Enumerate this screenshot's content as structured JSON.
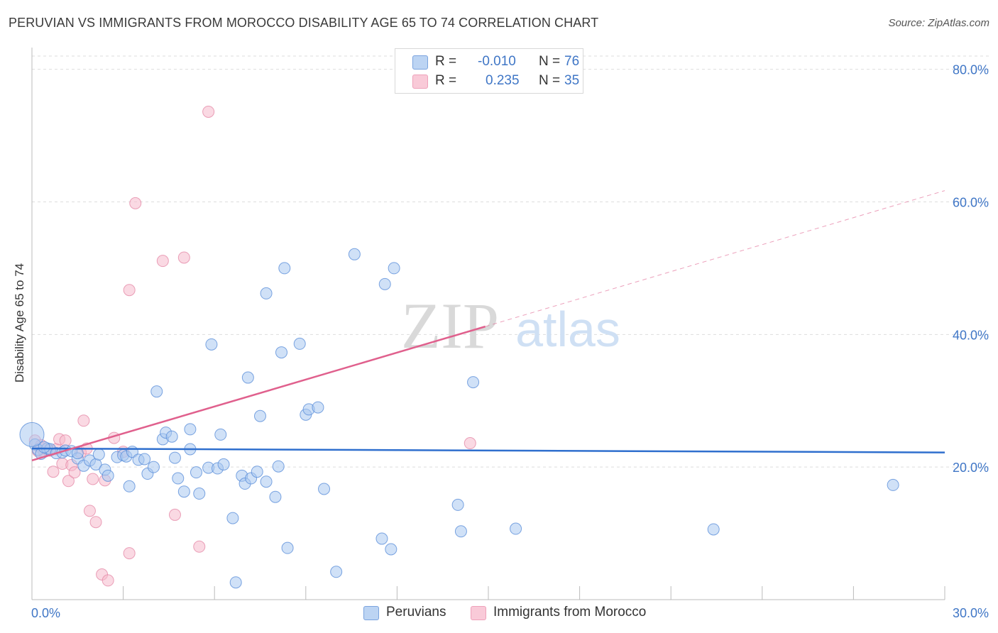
{
  "header": {
    "title": "PERUVIAN VS IMMIGRANTS FROM MOROCCO DISABILITY AGE 65 TO 74 CORRELATION CHART",
    "source": "Source: ZipAtlas.com"
  },
  "legend_stats": [
    {
      "r_label": "R =",
      "r_value": "-0.010",
      "n_label": "N =",
      "n_value": "76"
    },
    {
      "r_label": "R =",
      "r_value": "0.235",
      "n_label": "N =",
      "n_value": "35"
    }
  ],
  "legend_series": [
    {
      "label": "Peruvians"
    },
    {
      "label": "Immigrants from Morocco"
    }
  ],
  "colors": {
    "blue_fill": "#a9c8f0",
    "blue_stroke": "#5b8fd9",
    "blue_line": "#2f6fce",
    "pink_fill": "#f6b9cc",
    "pink_stroke": "#e58aa7",
    "pink_line": "#e0608d",
    "tick_text": "#3f76c6",
    "grid": "#dddddd",
    "watermark": "#d9d9d9"
  },
  "watermark": {
    "zip": "ZIP",
    "atlas": "atlas"
  },
  "chart_data": {
    "type": "scatter",
    "title": "PERUVIAN VS IMMIGRANTS FROM MOROCCO DISABILITY AGE 65 TO 74 CORRELATION CHART",
    "xlabel": "",
    "ylabel": "Disability Age 65 to 74",
    "xlim": [
      0,
      30
    ],
    "ylim": [
      0,
      82
    ],
    "x_tick_labels": [
      "0.0%",
      "30.0%"
    ],
    "y_ticks": [
      20,
      40,
      60,
      80
    ],
    "y_tick_labels": [
      "20.0%",
      "40.0%",
      "60.0%",
      "80.0%"
    ],
    "grid": true,
    "series": [
      {
        "name": "Peruvians",
        "r": -0.01,
        "n": 76,
        "trend": {
          "x0": 0,
          "y0": 22.8,
          "x1": 30,
          "y1": 22.2
        },
        "points": [
          [
            0.1,
            23.4
          ],
          [
            0.2,
            22.6
          ],
          [
            0.3,
            22.0
          ],
          [
            0.5,
            22.8
          ],
          [
            0.6,
            22.7
          ],
          [
            0.8,
            22.1
          ],
          [
            1.0,
            22.2
          ],
          [
            1.1,
            22.5
          ],
          [
            1.3,
            22.4
          ],
          [
            1.5,
            21.3
          ],
          [
            1.7,
            20.2
          ],
          [
            1.9,
            21.0
          ],
          [
            2.1,
            20.4
          ],
          [
            2.2,
            21.9
          ],
          [
            2.4,
            19.6
          ],
          [
            2.5,
            18.7
          ],
          [
            2.8,
            21.5
          ],
          [
            3.0,
            21.8
          ],
          [
            3.1,
            21.6
          ],
          [
            3.2,
            17.1
          ],
          [
            3.3,
            22.3
          ],
          [
            3.5,
            21.1
          ],
          [
            3.7,
            21.2
          ],
          [
            3.8,
            19.0
          ],
          [
            4.0,
            20.0
          ],
          [
            4.1,
            31.4
          ],
          [
            4.3,
            24.2
          ],
          [
            4.4,
            25.2
          ],
          [
            4.6,
            24.6
          ],
          [
            4.7,
            21.4
          ],
          [
            4.8,
            18.3
          ],
          [
            5.0,
            16.3
          ],
          [
            5.2,
            22.7
          ],
          [
            5.2,
            25.7
          ],
          [
            5.4,
            19.2
          ],
          [
            5.5,
            16.0
          ],
          [
            5.8,
            19.9
          ],
          [
            5.9,
            38.5
          ],
          [
            6.1,
            19.8
          ],
          [
            6.2,
            24.9
          ],
          [
            6.6,
            12.3
          ],
          [
            6.7,
            2.6
          ],
          [
            6.9,
            18.7
          ],
          [
            7.0,
            17.5
          ],
          [
            7.1,
            33.5
          ],
          [
            7.2,
            18.3
          ],
          [
            7.4,
            19.3
          ],
          [
            7.5,
            27.7
          ],
          [
            7.7,
            17.8
          ],
          [
            7.7,
            46.2
          ],
          [
            8.0,
            15.5
          ],
          [
            8.1,
            20.1
          ],
          [
            8.2,
            37.3
          ],
          [
            8.3,
            50.0
          ],
          [
            8.4,
            7.8
          ],
          [
            8.8,
            38.6
          ],
          [
            9.0,
            27.9
          ],
          [
            9.1,
            28.7
          ],
          [
            9.4,
            29.0
          ],
          [
            9.6,
            16.7
          ],
          [
            10.0,
            4.2
          ],
          [
            10.6,
            52.1
          ],
          [
            11.5,
            9.2
          ],
          [
            11.6,
            47.6
          ],
          [
            11.8,
            7.6
          ],
          [
            11.9,
            50.0
          ],
          [
            14.0,
            14.3
          ],
          [
            14.1,
            10.3
          ],
          [
            14.5,
            32.8
          ],
          [
            15.9,
            10.7
          ],
          [
            22.4,
            10.6
          ],
          [
            28.3,
            17.3
          ],
          [
            0.0,
            24.9
          ],
          [
            1.5,
            22.1
          ],
          [
            0.4,
            23.0
          ],
          [
            6.3,
            20.4
          ]
        ]
      },
      {
        "name": "Immigrants from Morocco",
        "r": 0.235,
        "n": 35,
        "trend": {
          "x0": 0,
          "y0": 21.0,
          "x1": 14.9,
          "y1": 41.2
        },
        "trend_dashed_to": {
          "x": 30,
          "y": 61.7
        },
        "points": [
          [
            0.1,
            24.0
          ],
          [
            0.2,
            22.4
          ],
          [
            0.3,
            22.9
          ],
          [
            0.4,
            22.3
          ],
          [
            0.5,
            22.6
          ],
          [
            0.6,
            22.5
          ],
          [
            0.7,
            19.3
          ],
          [
            0.8,
            22.7
          ],
          [
            0.9,
            24.2
          ],
          [
            1.0,
            20.5
          ],
          [
            1.1,
            24.0
          ],
          [
            1.2,
            17.9
          ],
          [
            1.3,
            20.3
          ],
          [
            1.4,
            19.2
          ],
          [
            1.6,
            22.2
          ],
          [
            1.7,
            27.0
          ],
          [
            1.8,
            22.8
          ],
          [
            1.9,
            13.4
          ],
          [
            2.0,
            18.2
          ],
          [
            2.1,
            11.7
          ],
          [
            2.3,
            3.8
          ],
          [
            2.4,
            18.0
          ],
          [
            2.5,
            2.9
          ],
          [
            2.7,
            24.4
          ],
          [
            3.0,
            22.3
          ],
          [
            3.2,
            46.7
          ],
          [
            3.2,
            7.0
          ],
          [
            3.4,
            59.8
          ],
          [
            4.3,
            51.1
          ],
          [
            4.7,
            12.8
          ],
          [
            5.0,
            51.6
          ],
          [
            5.5,
            8.0
          ],
          [
            5.8,
            73.6
          ],
          [
            14.4,
            23.6
          ],
          [
            0.3,
            23.3
          ]
        ]
      }
    ]
  }
}
